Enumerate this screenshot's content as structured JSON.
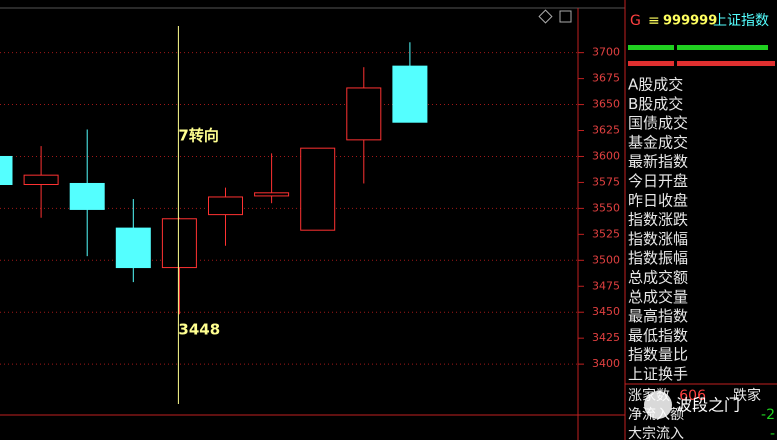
{
  "chart_data": {
    "type": "candlestick",
    "categories": [
      null,
      null,
      null,
      null,
      null,
      null,
      null,
      null,
      null,
      null
    ],
    "open": [
      3600,
      3573,
      3574,
      3531,
      3493,
      3544,
      3562,
      3529,
      3616,
      3687
    ],
    "high": [
      3600,
      3610,
      3626,
      3559,
      3541,
      3570,
      3603,
      3608,
      3686,
      3710
    ],
    "low": [
      3573,
      3541,
      3504,
      3479,
      3448,
      3514,
      3555,
      3529,
      3574,
      3633
    ],
    "close": [
      3573,
      3582,
      3549,
      3493,
      3540,
      3561,
      3565,
      3608,
      3666,
      3633
    ],
    "up_color": "#ff3232",
    "down_color": "#54ffff",
    "ylim": [
      3351,
      3743
    ],
    "yticks": [
      3400,
      3425,
      3450,
      3475,
      3500,
      3525,
      3550,
      3575,
      3600,
      3625,
      3650,
      3675,
      3700
    ],
    "grid": true,
    "marker_index": 4,
    "marker_text": "7转向",
    "marker_low": 3448
  },
  "panel": {
    "code_prefix": "G",
    "code": "999999",
    "name": "上证指数",
    "fields": [
      "A股成交",
      "B股成交",
      "国债成交",
      "基金成交",
      "最新指数",
      "今日开盘",
      "昨日收盘",
      "指数涨跌",
      "指数涨幅",
      "指数振幅",
      "总成交额",
      "总成交量",
      "最高指数",
      "最低指数",
      "指数量比",
      "上证换手"
    ],
    "bottom_rows": [
      [
        "涨家数",
        "606",
        "跌家"
      ],
      [
        "净流入额",
        "-2"
      ],
      [
        "大宗流入",
        "-"
      ]
    ]
  },
  "watermark": "波段之门"
}
